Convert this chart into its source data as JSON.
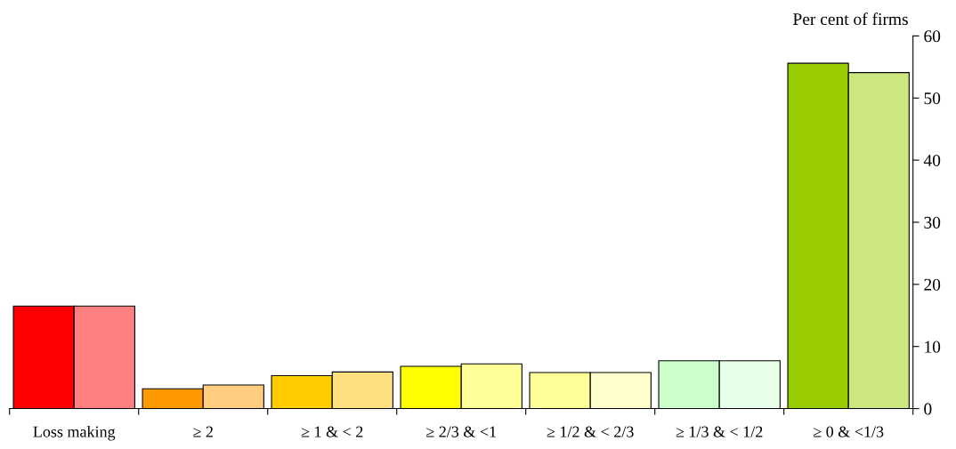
{
  "chart_data": {
    "type": "bar",
    "ylabel": "Per cent of firms",
    "categories": [
      "Loss making",
      "≥ 2",
      "≥ 1 & < 2",
      "≥ 2/3 & <1",
      "≥ 1/2 & < 2/3",
      "≥ 1/3 & < 1/2",
      "≥ 0 & <1/3"
    ],
    "series": [
      {
        "colors": [
          "#ff0000",
          "#ff9900",
          "#ffcc00",
          "#ffff00",
          "#ffff99",
          "#ccffcc",
          "#99cc00"
        ],
        "values": [
          16.5,
          3.2,
          5.3,
          6.8,
          5.8,
          7.7,
          55.6
        ]
      },
      {
        "colors": [
          "#ff8080",
          "#ffcc80",
          "#ffe080",
          "#ffff99",
          "#ffffcc",
          "#e6ffe6",
          "#cce680"
        ],
        "values": [
          16.5,
          3.8,
          5.9,
          7.2,
          5.8,
          7.7,
          54.1
        ]
      }
    ],
    "ylim": [
      0,
      60
    ],
    "yticks": [
      0,
      10,
      20,
      30,
      40,
      50,
      60
    ],
    "grid": false,
    "legend": false
  }
}
